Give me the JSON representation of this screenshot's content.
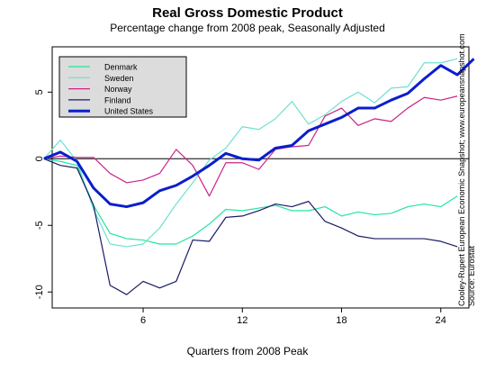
{
  "chart_data": {
    "type": "line",
    "title": "Real Gross Domestic Product",
    "subtitle": "Percentage change from 2008 peak, Seasonally Adjusted",
    "xlabel": "Quarters from 2008 Peak",
    "ylabel": "",
    "side_note": [
      "Cooley-Rupert European Economic Snapshot; www.europeansnapshot.com",
      "Source: Eurostat"
    ],
    "xlim": [
      0.5,
      25.7
    ],
    "ylim": [
      -11.2,
      8.4
    ],
    "xticks": [
      6,
      12,
      18,
      24
    ],
    "yticks": [
      -10,
      -5,
      0,
      5
    ],
    "legend_position": "top-left",
    "x": [
      0,
      1,
      2,
      3,
      4,
      5,
      6,
      7,
      8,
      9,
      10,
      11,
      12,
      13,
      14,
      15,
      16,
      17,
      18,
      19,
      20,
      21,
      22,
      23,
      24,
      25
    ],
    "series": [
      {
        "name": "Denmark",
        "color": "#22e5a0",
        "width": 1.2,
        "values": [
          0,
          -0.2,
          -0.5,
          -3.5,
          -5.6,
          -6.0,
          -6.1,
          -6.4,
          -6.4,
          -5.8,
          -4.9,
          -3.8,
          -3.9,
          -3.7,
          -3.5,
          -3.9,
          -3.9,
          -3.6,
          -4.3,
          -4.0,
          -4.2,
          -4.1,
          -3.6,
          -3.4,
          -3.6,
          -2.8
        ]
      },
      {
        "name": "Sweden",
        "color": "#6fe0d0",
        "width": 1.2,
        "values": [
          0,
          1.4,
          -0.2,
          -3.8,
          -6.4,
          -6.6,
          -6.4,
          -5.2,
          -3.4,
          -1.8,
          -0.1,
          0.8,
          2.4,
          2.2,
          3.0,
          4.3,
          2.6,
          3.3,
          4.3,
          5.0,
          4.2,
          5.3,
          5.4,
          7.2,
          7.2,
          7.5
        ]
      },
      {
        "name": "Norway",
        "color": "#cc2288",
        "width": 1.2,
        "values": [
          0,
          0.2,
          0.1,
          0.1,
          -1.1,
          -1.8,
          -1.6,
          -1.1,
          0.7,
          -0.5,
          -2.8,
          -0.3,
          -0.3,
          -0.8,
          0.7,
          0.9,
          1.0,
          3.2,
          3.8,
          2.5,
          3.0,
          2.8,
          3.8,
          4.6,
          4.4,
          4.7
        ]
      },
      {
        "name": "Finland",
        "color": "#1a1a66",
        "width": 1.2,
        "values": [
          0,
          -0.5,
          -0.7,
          -3.5,
          -9.5,
          -10.2,
          -9.2,
          -9.7,
          -9.2,
          -6.1,
          -6.2,
          -4.4,
          -4.3,
          -3.9,
          -3.4,
          -3.6,
          -3.2,
          -4.7,
          -5.2,
          -5.8,
          -6.0,
          -6.0,
          -6.0,
          -6.0,
          -6.2,
          -6.6
        ]
      },
      {
        "name": "United States",
        "color": "#0a1ecc",
        "width": 3,
        "values": [
          0,
          0.5,
          -0.2,
          -2.2,
          -3.4,
          -3.6,
          -3.3,
          -2.4,
          -2.0,
          -1.3,
          -0.5,
          0.4,
          0.0,
          -0.1,
          0.8,
          1.0,
          2.1,
          2.6,
          3.1,
          3.8,
          3.8,
          4.4,
          4.9,
          6.0,
          7.0,
          6.3
        ]
      }
    ],
    "extra_us_point": [
      26,
      7.5
    ],
    "grid": false,
    "zero_line": true
  }
}
